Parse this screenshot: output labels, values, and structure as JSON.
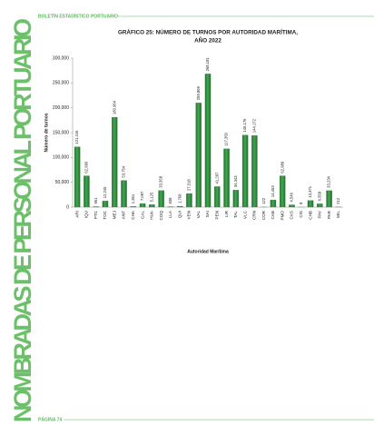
{
  "header": {
    "title": "BOLETÍN ESTADÍSTICO PORTUARIO"
  },
  "sidebar": {
    "title": "NOMBRADAS DE PERSONAL PORTUARIO"
  },
  "footer": {
    "page": "PÁGINA 74"
  },
  "chart_data": {
    "type": "bar",
    "title": "GRÁFICO 25: NÚMERO DE TURNOS POR AUTORIDAD MARÍTIMA,",
    "subtitle": "AÑO 2022",
    "x_label": "Autoridad Marítima",
    "y_label": "Número de turnos",
    "color": "#2f8f3e",
    "categories": [
      "ARI",
      "IQU",
      "PTC",
      "TOC",
      "MEJ",
      "ANT",
      "CHA",
      "CAL",
      "HUA",
      "COQ",
      "LLA",
      "QUI",
      "VEN",
      "VAL",
      "SAI",
      "PEN",
      "LIR",
      "TAL",
      "VLC",
      "CRN",
      "COR",
      "CAB",
      "PMO",
      "CAS",
      "CIS",
      "CHB",
      "PAV",
      "PAR",
      "WIL"
    ],
    "values": [
      121416,
      62990,
      961,
      12245,
      180964,
      53754,
      1351,
      7097,
      5125,
      33358,
      838,
      1768,
      27318,
      209809,
      268181,
      41297,
      117350,
      34343,
      145176,
      144172,
      122,
      14453,
      62989,
      4546,
      8,
      13371,
      6558,
      33234,
      212
    ],
    "value_labels": [
      "121,416",
      "62,990",
      "961",
      "12,245",
      "180,964",
      "53,754",
      "1,351",
      "7,097",
      "5,125",
      "33,358",
      "838",
      "1,768",
      "27,318",
      "209,809",
      "268,181",
      "41,297",
      "117,350",
      "34,343",
      "145,176",
      "144,172",
      "122",
      "14,453",
      "62,989",
      "4,546",
      "8",
      "13,371",
      "6,558",
      "33,234",
      "212"
    ],
    "ylim": [
      0,
      300000
    ],
    "yticks": [
      {
        "value": 0,
        "label": "0"
      },
      {
        "value": 50000,
        "label": "50,000"
      },
      {
        "value": 100000,
        "label": "100,000"
      },
      {
        "value": 150000,
        "label": "150,000"
      },
      {
        "value": 200000,
        "label": "200,000"
      },
      {
        "value": 250000,
        "label": "250,000"
      },
      {
        "value": 300000,
        "label": "300,000"
      }
    ]
  }
}
